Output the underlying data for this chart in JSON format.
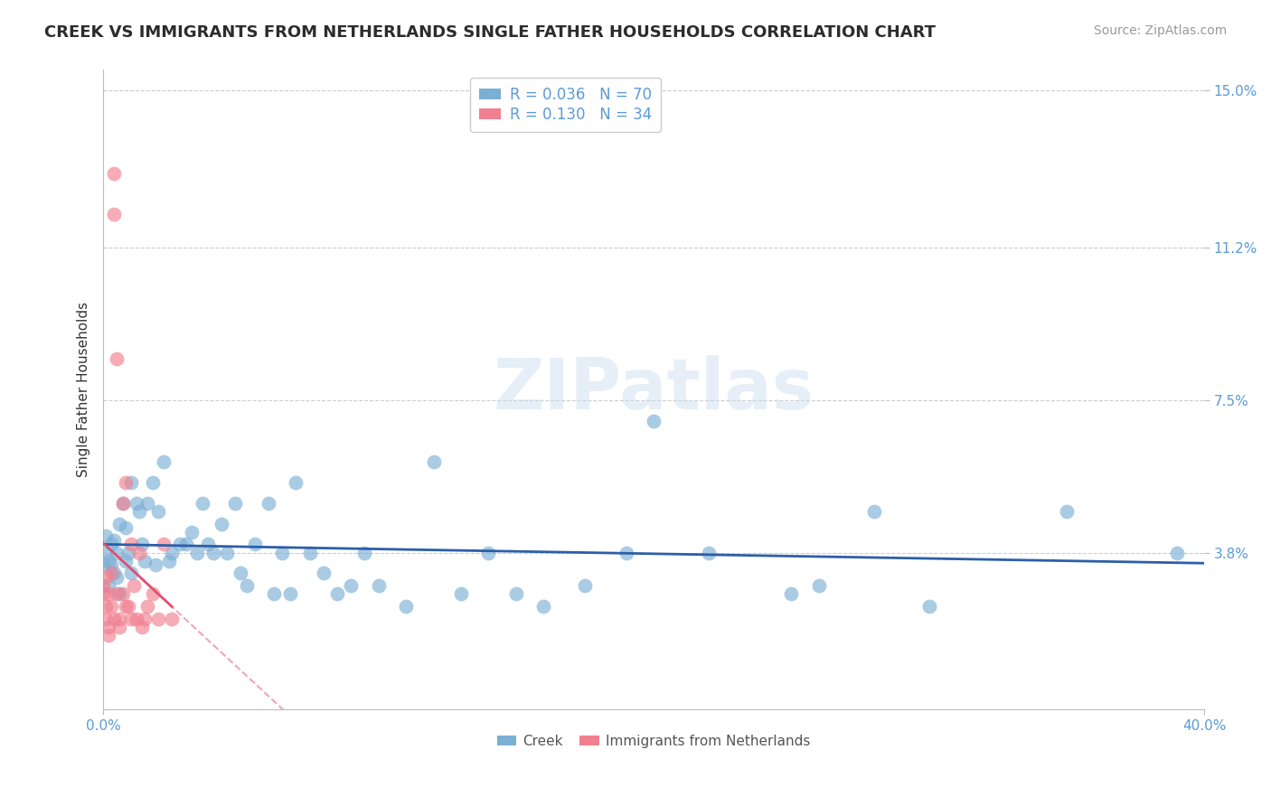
{
  "title": "CREEK VS IMMIGRANTS FROM NETHERLANDS SINGLE FATHER HOUSEHOLDS CORRELATION CHART",
  "source_text": "Source: ZipAtlas.com",
  "ylabel": "Single Father Households",
  "xlim": [
    0.0,
    0.4
  ],
  "ylim": [
    0.0,
    0.155
  ],
  "yticks": [
    0.038,
    0.075,
    0.112,
    0.15
  ],
  "ytick_labels": [
    "3.8%",
    "7.5%",
    "11.2%",
    "15.0%"
  ],
  "xtick_labels": [
    "0.0%",
    "40.0%"
  ],
  "creek_color": "#7bafd4",
  "netherlands_color": "#f08090",
  "creek_line_color": "#2c5fa8",
  "netherlands_line_color": "#e05070",
  "background_color": "#ffffff",
  "grid_color": "#cccccc",
  "watermark_text": "ZIPatlas",
  "creek_R": 0.036,
  "creek_N": 70,
  "netherlands_R": 0.13,
  "netherlands_N": 34,
  "creek_scatter": [
    [
      0.0,
      0.035
    ],
    [
      0.001,
      0.042
    ],
    [
      0.001,
      0.038
    ],
    [
      0.002,
      0.03
    ],
    [
      0.002,
      0.036
    ],
    [
      0.003,
      0.04
    ],
    [
      0.003,
      0.035
    ],
    [
      0.004,
      0.033
    ],
    [
      0.004,
      0.041
    ],
    [
      0.005,
      0.038
    ],
    [
      0.005,
      0.032
    ],
    [
      0.006,
      0.028
    ],
    [
      0.006,
      0.045
    ],
    [
      0.007,
      0.05
    ],
    [
      0.008,
      0.044
    ],
    [
      0.008,
      0.036
    ],
    [
      0.009,
      0.038
    ],
    [
      0.01,
      0.033
    ],
    [
      0.01,
      0.055
    ],
    [
      0.012,
      0.05
    ],
    [
      0.013,
      0.048
    ],
    [
      0.014,
      0.04
    ],
    [
      0.015,
      0.036
    ],
    [
      0.016,
      0.05
    ],
    [
      0.018,
      0.055
    ],
    [
      0.019,
      0.035
    ],
    [
      0.02,
      0.048
    ],
    [
      0.022,
      0.06
    ],
    [
      0.024,
      0.036
    ],
    [
      0.025,
      0.038
    ],
    [
      0.028,
      0.04
    ],
    [
      0.03,
      0.04
    ],
    [
      0.032,
      0.043
    ],
    [
      0.034,
      0.038
    ],
    [
      0.036,
      0.05
    ],
    [
      0.038,
      0.04
    ],
    [
      0.04,
      0.038
    ],
    [
      0.043,
      0.045
    ],
    [
      0.045,
      0.038
    ],
    [
      0.048,
      0.05
    ],
    [
      0.05,
      0.033
    ],
    [
      0.052,
      0.03
    ],
    [
      0.055,
      0.04
    ],
    [
      0.06,
      0.05
    ],
    [
      0.062,
      0.028
    ],
    [
      0.065,
      0.038
    ],
    [
      0.068,
      0.028
    ],
    [
      0.07,
      0.055
    ],
    [
      0.075,
      0.038
    ],
    [
      0.08,
      0.033
    ],
    [
      0.085,
      0.028
    ],
    [
      0.09,
      0.03
    ],
    [
      0.095,
      0.038
    ],
    [
      0.1,
      0.03
    ],
    [
      0.11,
      0.025
    ],
    [
      0.12,
      0.06
    ],
    [
      0.13,
      0.028
    ],
    [
      0.14,
      0.038
    ],
    [
      0.15,
      0.028
    ],
    [
      0.16,
      0.025
    ],
    [
      0.175,
      0.03
    ],
    [
      0.19,
      0.038
    ],
    [
      0.2,
      0.07
    ],
    [
      0.22,
      0.038
    ],
    [
      0.25,
      0.028
    ],
    [
      0.26,
      0.03
    ],
    [
      0.28,
      0.048
    ],
    [
      0.3,
      0.025
    ],
    [
      0.35,
      0.048
    ],
    [
      0.39,
      0.038
    ]
  ],
  "netherlands_scatter": [
    [
      0.0,
      0.03
    ],
    [
      0.0,
      0.028
    ],
    [
      0.001,
      0.025
    ],
    [
      0.001,
      0.032
    ],
    [
      0.001,
      0.022
    ],
    [
      0.002,
      0.028
    ],
    [
      0.002,
      0.02
    ],
    [
      0.002,
      0.018
    ],
    [
      0.003,
      0.033
    ],
    [
      0.003,
      0.025
    ],
    [
      0.004,
      0.12
    ],
    [
      0.004,
      0.13
    ],
    [
      0.004,
      0.022
    ],
    [
      0.005,
      0.085
    ],
    [
      0.005,
      0.028
    ],
    [
      0.006,
      0.022
    ],
    [
      0.006,
      0.02
    ],
    [
      0.007,
      0.05
    ],
    [
      0.007,
      0.028
    ],
    [
      0.008,
      0.055
    ],
    [
      0.008,
      0.025
    ],
    [
      0.009,
      0.025
    ],
    [
      0.01,
      0.04
    ],
    [
      0.01,
      0.022
    ],
    [
      0.011,
      0.03
    ],
    [
      0.012,
      0.022
    ],
    [
      0.013,
      0.038
    ],
    [
      0.014,
      0.02
    ],
    [
      0.015,
      0.022
    ],
    [
      0.016,
      0.025
    ],
    [
      0.018,
      0.028
    ],
    [
      0.02,
      0.022
    ],
    [
      0.022,
      0.04
    ],
    [
      0.025,
      0.022
    ]
  ],
  "title_fontsize": 13,
  "axis_label_fontsize": 11,
  "tick_fontsize": 11,
  "tick_color": "#5b9bd5",
  "source_fontsize": 10
}
